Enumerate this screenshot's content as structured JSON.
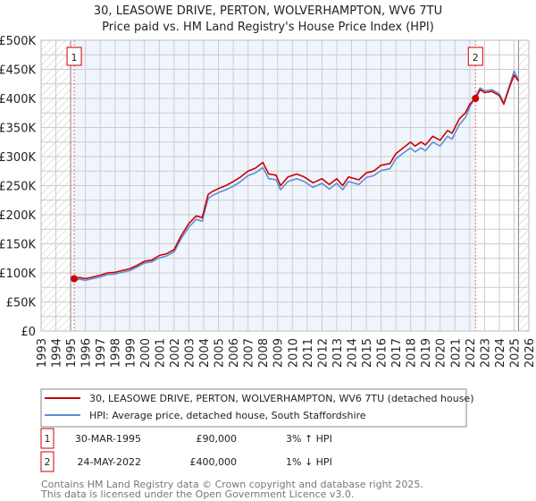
{
  "chart_data": {
    "type": "line",
    "title": "30, LEASOWE DRIVE, PERTON, WOLVERHAMPTON, WV6 7TU",
    "subtitle": "Price paid vs. HM Land Registry's House Price Index (HPI)",
    "xlim": [
      1993,
      2026
    ],
    "ylim": [
      0,
      500000
    ],
    "grid": true,
    "y_ticks": [
      0,
      50000,
      100000,
      150000,
      200000,
      250000,
      300000,
      350000,
      400000,
      450000,
      500000
    ],
    "y_tick_labels": [
      "£0",
      "£50K",
      "£100K",
      "£150K",
      "£200K",
      "£250K",
      "£300K",
      "£350K",
      "£400K",
      "£450K",
      "£500K"
    ],
    "x_tick_labels": [
      "1993",
      "1994",
      "1995",
      "1996",
      "1997",
      "1998",
      "1999",
      "2000",
      "2001",
      "2002",
      "2003",
      "2004",
      "2005",
      "2006",
      "2007",
      "2008",
      "2009",
      "2010",
      "2011",
      "2012",
      "2013",
      "2014",
      "2015",
      "2016",
      "2017",
      "2018",
      "2019",
      "2020",
      "2021",
      "2022",
      "2023",
      "2024",
      "2025",
      "2026"
    ],
    "hatched_before": 1995.0,
    "hatched_after": 2025.3,
    "x": [
      1995.24,
      1995.6,
      1996.0,
      1996.5,
      1997.0,
      1997.5,
      1998.0,
      1998.5,
      1999.0,
      1999.5,
      2000.0,
      2000.5,
      2001.0,
      2001.5,
      2002.0,
      2002.5,
      2003.0,
      2003.5,
      2003.9,
      2004.3,
      2004.6,
      2005.0,
      2005.5,
      2006.0,
      2006.5,
      2007.0,
      2007.5,
      2008.0,
      2008.4,
      2008.9,
      2009.2,
      2009.7,
      2010.3,
      2010.8,
      2011.4,
      2012.0,
      2012.5,
      2013.0,
      2013.4,
      2013.8,
      2014.5,
      2015.0,
      2015.5,
      2016.0,
      2016.6,
      2017.0,
      2017.5,
      2018.0,
      2018.3,
      2018.7,
      2019.0,
      2019.5,
      2020.0,
      2020.5,
      2020.8,
      2021.3,
      2021.7,
      2022.0,
      2022.39,
      2022.7,
      2023.0,
      2023.5,
      2024.0,
      2024.3,
      2024.7,
      2025.0,
      2025.3
    ],
    "series": [
      {
        "name": "30, LEASOWE DRIVE, PERTON, WOLVERHAMPTON, WV6 7TU (detached house)",
        "color": "#cc0000",
        "values": [
          90000,
          92000,
          90000,
          93000,
          96000,
          100000,
          101000,
          104000,
          107000,
          113000,
          120000,
          122000,
          130000,
          133000,
          140000,
          165000,
          185000,
          198000,
          195000,
          235000,
          240000,
          245000,
          250000,
          257000,
          265000,
          275000,
          280000,
          290000,
          270000,
          268000,
          250000,
          265000,
          270000,
          265000,
          255000,
          262000,
          252000,
          262000,
          250000,
          265000,
          260000,
          272000,
          275000,
          285000,
          288000,
          305000,
          315000,
          325000,
          318000,
          325000,
          320000,
          335000,
          328000,
          345000,
          340000,
          365000,
          375000,
          390000,
          400000,
          415000,
          410000,
          412000,
          405000,
          390000,
          420000,
          440000,
          430000
        ]
      },
      {
        "name": "HPI: Average price, detached house, South Staffordshire",
        "color": "#5b8fd6",
        "values": [
          87000,
          89000,
          87000,
          90000,
          93000,
          97000,
          98000,
          101000,
          104000,
          110000,
          117000,
          119000,
          126000,
          129000,
          136000,
          160000,
          179000,
          192000,
          189000,
          228000,
          233000,
          238000,
          243000,
          249000,
          257000,
          267000,
          272000,
          281000,
          262000,
          260000,
          243000,
          257000,
          262000,
          257000,
          247000,
          254000,
          244000,
          254000,
          243000,
          257000,
          252000,
          264000,
          267000,
          276000,
          279000,
          296000,
          306000,
          315000,
          308000,
          315000,
          310000,
          325000,
          318000,
          335000,
          330000,
          355000,
          367000,
          385000,
          404000,
          418000,
          413000,
          415000,
          408000,
          392000,
          423000,
          447000,
          432000
        ]
      }
    ],
    "sales": [
      {
        "label": "1",
        "x": 1995.24,
        "value": 90000,
        "date": "30-MAR-1995",
        "price": "£90,000",
        "hpi_diff": "3% ↑ HPI"
      },
      {
        "label": "2",
        "x": 2022.39,
        "value": 400000,
        "date": "24-MAY-2022",
        "price": "£400,000",
        "hpi_diff": "1% ↓ HPI"
      }
    ]
  },
  "footer": {
    "line1": "Contains HM Land Registry data © Crown copyright and database right 2025.",
    "line2": "This data is licensed under the Open Government Licence v3.0."
  }
}
